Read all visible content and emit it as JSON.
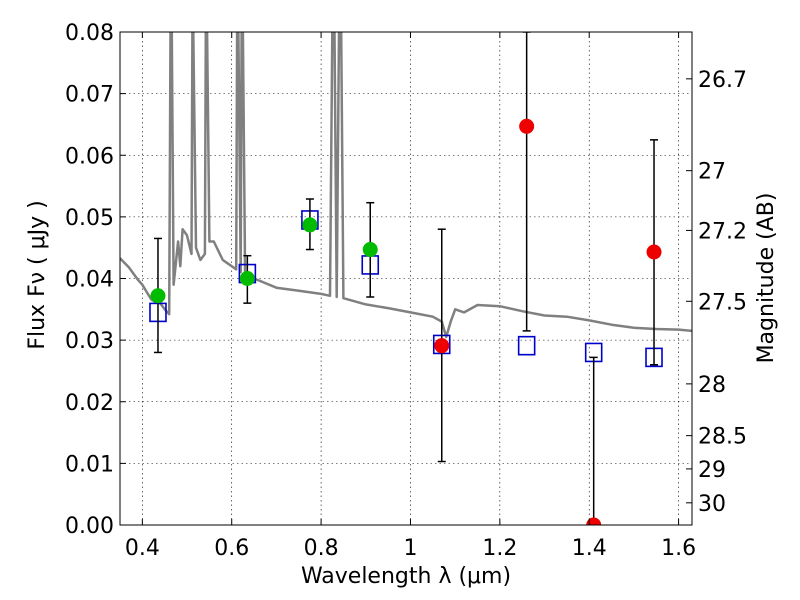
{
  "chart_data": {
    "type": "scatter",
    "xlabel": "Wavelength  λ (μm)",
    "ylabel": "Flux  Fν  ( μJy )",
    "y2label": "Magnitude (AB)",
    "xlim": [
      0.35,
      1.63
    ],
    "ylim": [
      0.0,
      0.08
    ],
    "grid": true,
    "x_ticks": [
      {
        "value": 0.4,
        "label": "0.4"
      },
      {
        "value": 0.6,
        "label": "0.6"
      },
      {
        "value": 0.8,
        "label": "0.8"
      },
      {
        "value": 1.0,
        "label": "1"
      },
      {
        "value": 1.2,
        "label": "1.2"
      },
      {
        "value": 1.4,
        "label": "1.4"
      },
      {
        "value": 1.6,
        "label": "1.6"
      }
    ],
    "y_ticks": [
      {
        "value": 0.0,
        "label": "0.00"
      },
      {
        "value": 0.01,
        "label": "0.01"
      },
      {
        "value": 0.02,
        "label": "0.02"
      },
      {
        "value": 0.03,
        "label": "0.03"
      },
      {
        "value": 0.04,
        "label": "0.04"
      },
      {
        "value": 0.05,
        "label": "0.05"
      },
      {
        "value": 0.06,
        "label": "0.06"
      },
      {
        "value": 0.07,
        "label": "0.07"
      },
      {
        "value": 0.08,
        "label": "0.08"
      }
    ],
    "y2_ticks": [
      {
        "flux": 0.0724,
        "label": "26.7"
      },
      {
        "flux": 0.0575,
        "label": "27"
      },
      {
        "flux": 0.0478,
        "label": "27.2"
      },
      {
        "flux": 0.0363,
        "label": "27.5"
      },
      {
        "flux": 0.0229,
        "label": "28"
      },
      {
        "flux": 0.0145,
        "label": "28.5"
      },
      {
        "flux": 0.0091,
        "label": "29"
      },
      {
        "flux": 0.0036,
        "label": "30"
      }
    ],
    "series": [
      {
        "kind": "line",
        "color": "#808080",
        "points": [
          [
            0.35,
            0.0433
          ],
          [
            0.37,
            0.0418
          ],
          [
            0.39,
            0.0398
          ],
          [
            0.4,
            0.039
          ],
          [
            0.41,
            0.0378
          ],
          [
            0.42,
            0.0366
          ],
          [
            0.43,
            0.0362
          ],
          [
            0.44,
            0.036
          ],
          [
            0.45,
            0.035
          ],
          [
            0.46,
            0.0342
          ],
          [
            0.463,
            0.08
          ],
          [
            0.466,
            0.08
          ],
          [
            0.47,
            0.039
          ],
          [
            0.48,
            0.046
          ],
          [
            0.485,
            0.042
          ],
          [
            0.49,
            0.048
          ],
          [
            0.5,
            0.047
          ],
          [
            0.51,
            0.044
          ],
          [
            0.512,
            0.08
          ],
          [
            0.514,
            0.08
          ],
          [
            0.52,
            0.045
          ],
          [
            0.53,
            0.043
          ],
          [
            0.54,
            0.044
          ],
          [
            0.542,
            0.08
          ],
          [
            0.545,
            0.08
          ],
          [
            0.55,
            0.046
          ],
          [
            0.56,
            0.046
          ],
          [
            0.58,
            0.043
          ],
          [
            0.6,
            0.042
          ],
          [
            0.61,
            0.0415
          ],
          [
            0.612,
            0.08
          ],
          [
            0.615,
            0.08
          ],
          [
            0.62,
            0.041
          ],
          [
            0.622,
            0.08
          ],
          [
            0.625,
            0.08
          ],
          [
            0.63,
            0.0405
          ],
          [
            0.65,
            0.04
          ],
          [
            0.7,
            0.0385
          ],
          [
            0.75,
            0.038
          ],
          [
            0.8,
            0.0375
          ],
          [
            0.82,
            0.0372
          ],
          [
            0.825,
            0.08
          ],
          [
            0.83,
            0.08
          ],
          [
            0.835,
            0.037
          ],
          [
            0.84,
            0.08
          ],
          [
            0.845,
            0.08
          ],
          [
            0.85,
            0.0368
          ],
          [
            0.9,
            0.0358
          ],
          [
            0.95,
            0.0352
          ],
          [
            1.0,
            0.0345
          ],
          [
            1.05,
            0.0338
          ],
          [
            1.07,
            0.033
          ],
          [
            1.08,
            0.0305
          ],
          [
            1.09,
            0.033
          ],
          [
            1.1,
            0.035
          ],
          [
            1.12,
            0.0345
          ],
          [
            1.15,
            0.0357
          ],
          [
            1.2,
            0.0355
          ],
          [
            1.25,
            0.0347
          ],
          [
            1.3,
            0.034
          ],
          [
            1.35,
            0.0338
          ],
          [
            1.4,
            0.0332
          ],
          [
            1.45,
            0.0325
          ],
          [
            1.5,
            0.032
          ],
          [
            1.55,
            0.0318
          ],
          [
            1.6,
            0.0317
          ],
          [
            1.63,
            0.0315
          ]
        ]
      },
      {
        "kind": "open-square",
        "color": "#0000cc",
        "points": [
          [
            0.435,
            0.0345
          ],
          [
            0.635,
            0.0408
          ],
          [
            0.775,
            0.0495
          ],
          [
            0.91,
            0.0422
          ],
          [
            1.07,
            0.0293
          ],
          [
            1.26,
            0.0291
          ],
          [
            1.41,
            0.028
          ],
          [
            1.545,
            0.0272
          ]
        ]
      },
      {
        "kind": "errorbar",
        "color": "#000000",
        "points": [
          {
            "x": 0.435,
            "low": 0.028,
            "high": 0.0465
          },
          {
            "x": 0.635,
            "low": 0.036,
            "high": 0.0437
          },
          {
            "x": 0.775,
            "low": 0.0447,
            "high": 0.0529
          },
          {
            "x": 0.91,
            "low": 0.037,
            "high": 0.0523
          },
          {
            "x": 1.07,
            "low": 0.0103,
            "high": 0.048
          },
          {
            "x": 1.26,
            "low": 0.0315,
            "high": 0.08
          },
          {
            "x": 1.41,
            "low": 0.0,
            "high": 0.0272
          },
          {
            "x": 1.545,
            "low": 0.026,
            "high": 0.0625
          }
        ]
      },
      {
        "kind": "filled-circle",
        "color": "#00bb00",
        "points": [
          [
            0.435,
            0.0372
          ],
          [
            0.635,
            0.04
          ],
          [
            0.775,
            0.0487
          ],
          [
            0.91,
            0.0447
          ]
        ]
      },
      {
        "kind": "filled-circle",
        "color": "#ee0000",
        "points": [
          [
            1.07,
            0.0291
          ],
          [
            1.26,
            0.0647
          ],
          [
            1.41,
            0.0
          ],
          [
            1.545,
            0.0443
          ]
        ]
      }
    ]
  }
}
